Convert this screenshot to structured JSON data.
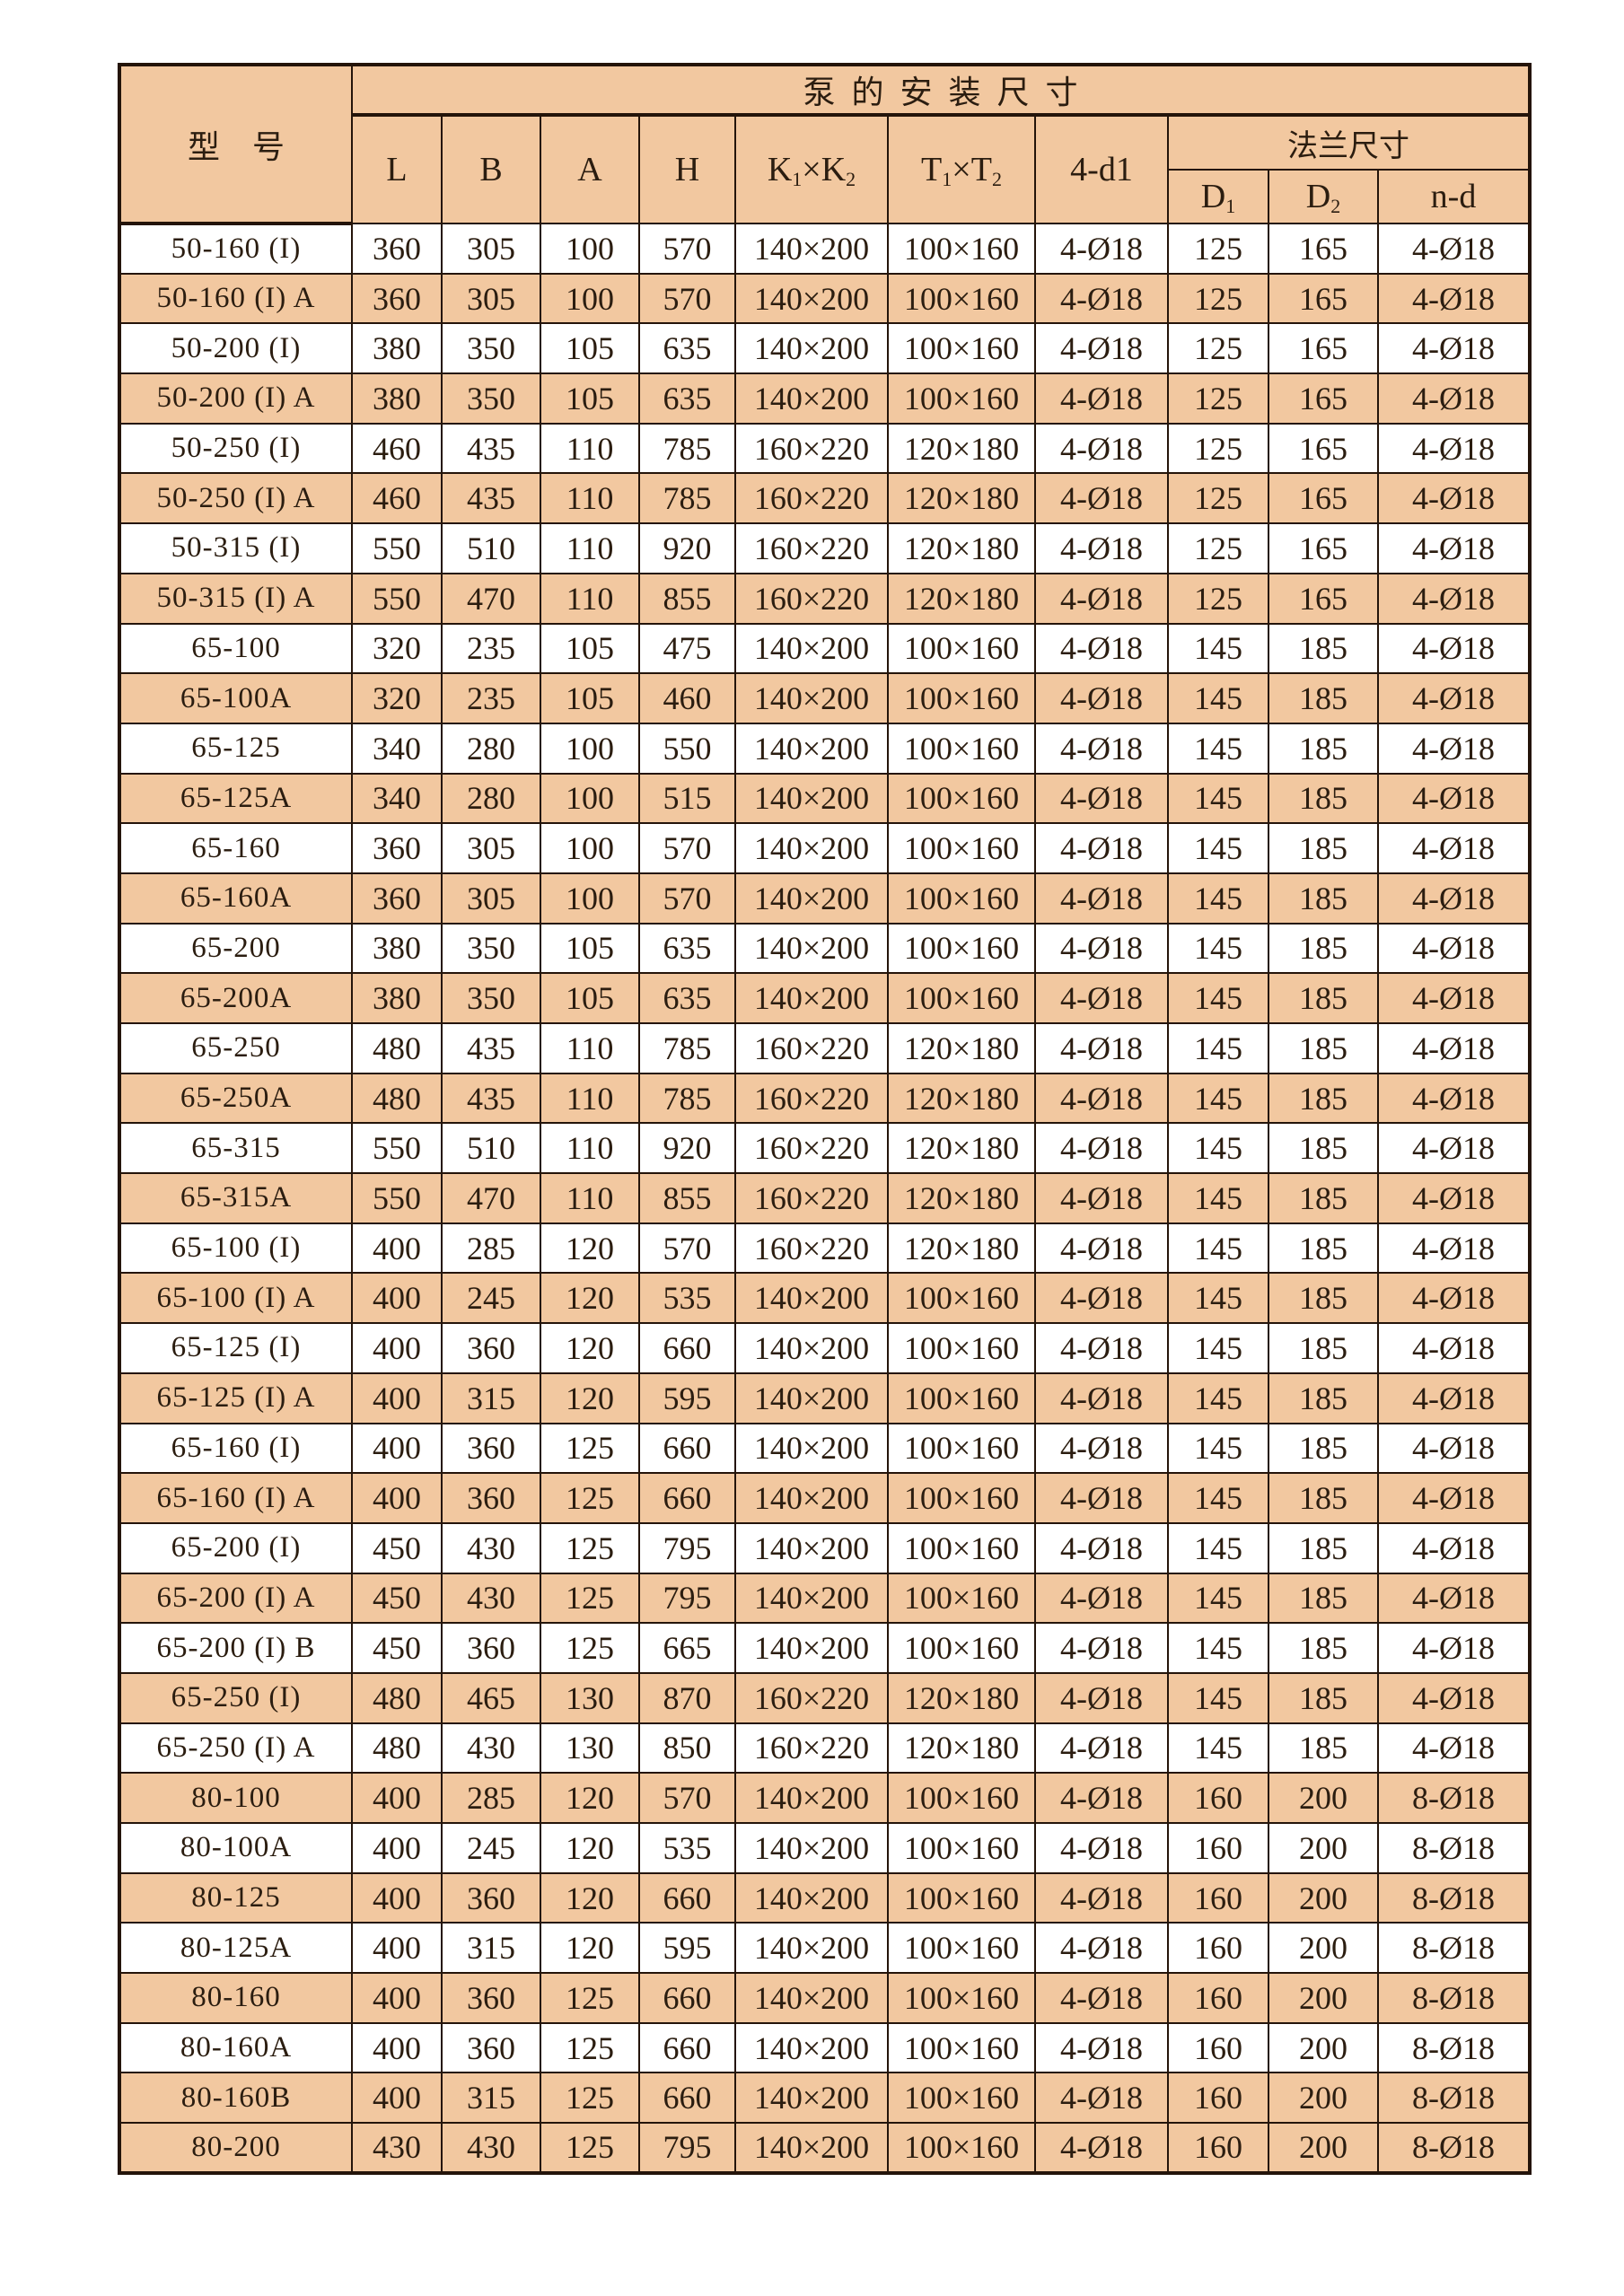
{
  "colors": {
    "stripe": "#f2c8a0",
    "row_background": "#ffffff",
    "border": "#24140a",
    "text": "#2b1d10"
  },
  "table": {
    "title": "泵的安装尺寸",
    "model_header": "型　号",
    "flange_header": "法兰尺寸",
    "columns": {
      "l": "L",
      "b": "B",
      "a": "A",
      "h": "H",
      "k": {
        "b1": "K",
        "s1": "1",
        "x": "×",
        "b2": "K",
        "s2": "2"
      },
      "t": {
        "b1": "T",
        "s1": "1",
        "x": "×",
        "b2": "T",
        "s2": "2"
      },
      "d1_bolt": "4-d1",
      "fd1": {
        "b": "D",
        "s": "1"
      },
      "fd2": {
        "b": "D",
        "s": "2"
      },
      "nd": "n-d"
    },
    "rows": [
      {
        "model": "50-160 (I)",
        "l": "360",
        "b": "305",
        "a": "100",
        "h": "570",
        "k": "140×200",
        "t": "100×160",
        "d1": "4-Ø18",
        "fd1": "125",
        "fd2": "165",
        "nd": "4-Ø18",
        "shaded": false
      },
      {
        "model": "50-160 (I) A",
        "l": "360",
        "b": "305",
        "a": "100",
        "h": "570",
        "k": "140×200",
        "t": "100×160",
        "d1": "4-Ø18",
        "fd1": "125",
        "fd2": "165",
        "nd": "4-Ø18",
        "shaded": true
      },
      {
        "model": "50-200 (I)",
        "l": "380",
        "b": "350",
        "a": "105",
        "h": "635",
        "k": "140×200",
        "t": "100×160",
        "d1": "4-Ø18",
        "fd1": "125",
        "fd2": "165",
        "nd": "4-Ø18",
        "shaded": false
      },
      {
        "model": "50-200 (I) A",
        "l": "380",
        "b": "350",
        "a": "105",
        "h": "635",
        "k": "140×200",
        "t": "100×160",
        "d1": "4-Ø18",
        "fd1": "125",
        "fd2": "165",
        "nd": "4-Ø18",
        "shaded": true
      },
      {
        "model": "50-250 (I)",
        "l": "460",
        "b": "435",
        "a": "110",
        "h": "785",
        "k": "160×220",
        "t": "120×180",
        "d1": "4-Ø18",
        "fd1": "125",
        "fd2": "165",
        "nd": "4-Ø18",
        "shaded": false
      },
      {
        "model": "50-250 (I) A",
        "l": "460",
        "b": "435",
        "a": "110",
        "h": "785",
        "k": "160×220",
        "t": "120×180",
        "d1": "4-Ø18",
        "fd1": "125",
        "fd2": "165",
        "nd": "4-Ø18",
        "shaded": true
      },
      {
        "model": "50-315 (I)",
        "l": "550",
        "b": "510",
        "a": "110",
        "h": "920",
        "k": "160×220",
        "t": "120×180",
        "d1": "4-Ø18",
        "fd1": "125",
        "fd2": "165",
        "nd": "4-Ø18",
        "shaded": false
      },
      {
        "model": "50-315 (I) A",
        "l": "550",
        "b": "470",
        "a": "110",
        "h": "855",
        "k": "160×220",
        "t": "120×180",
        "d1": "4-Ø18",
        "fd1": "125",
        "fd2": "165",
        "nd": "4-Ø18",
        "shaded": true
      },
      {
        "model": "65-100",
        "l": "320",
        "b": "235",
        "a": "105",
        "h": "475",
        "k": "140×200",
        "t": "100×160",
        "d1": "4-Ø18",
        "fd1": "145",
        "fd2": "185",
        "nd": "4-Ø18",
        "shaded": false
      },
      {
        "model": "65-100A",
        "l": "320",
        "b": "235",
        "a": "105",
        "h": "460",
        "k": "140×200",
        "t": "100×160",
        "d1": "4-Ø18",
        "fd1": "145",
        "fd2": "185",
        "nd": "4-Ø18",
        "shaded": true
      },
      {
        "model": "65-125",
        "l": "340",
        "b": "280",
        "a": "100",
        "h": "550",
        "k": "140×200",
        "t": "100×160",
        "d1": "4-Ø18",
        "fd1": "145",
        "fd2": "185",
        "nd": "4-Ø18",
        "shaded": false
      },
      {
        "model": "65-125A",
        "l": "340",
        "b": "280",
        "a": "100",
        "h": "515",
        "k": "140×200",
        "t": "100×160",
        "d1": "4-Ø18",
        "fd1": "145",
        "fd2": "185",
        "nd": "4-Ø18",
        "shaded": true
      },
      {
        "model": "65-160",
        "l": "360",
        "b": "305",
        "a": "100",
        "h": "570",
        "k": "140×200",
        "t": "100×160",
        "d1": "4-Ø18",
        "fd1": "145",
        "fd2": "185",
        "nd": "4-Ø18",
        "shaded": false
      },
      {
        "model": "65-160A",
        "l": "360",
        "b": "305",
        "a": "100",
        "h": "570",
        "k": "140×200",
        "t": "100×160",
        "d1": "4-Ø18",
        "fd1": "145",
        "fd2": "185",
        "nd": "4-Ø18",
        "shaded": true
      },
      {
        "model": "65-200",
        "l": "380",
        "b": "350",
        "a": "105",
        "h": "635",
        "k": "140×200",
        "t": "100×160",
        "d1": "4-Ø18",
        "fd1": "145",
        "fd2": "185",
        "nd": "4-Ø18",
        "shaded": false
      },
      {
        "model": "65-200A",
        "l": "380",
        "b": "350",
        "a": "105",
        "h": "635",
        "k": "140×200",
        "t": "100×160",
        "d1": "4-Ø18",
        "fd1": "145",
        "fd2": "185",
        "nd": "4-Ø18",
        "shaded": true
      },
      {
        "model": "65-250",
        "l": "480",
        "b": "435",
        "a": "110",
        "h": "785",
        "k": "160×220",
        "t": "120×180",
        "d1": "4-Ø18",
        "fd1": "145",
        "fd2": "185",
        "nd": "4-Ø18",
        "shaded": false
      },
      {
        "model": "65-250A",
        "l": "480",
        "b": "435",
        "a": "110",
        "h": "785",
        "k": "160×220",
        "t": "120×180",
        "d1": "4-Ø18",
        "fd1": "145",
        "fd2": "185",
        "nd": "4-Ø18",
        "shaded": true
      },
      {
        "model": "65-315",
        "l": "550",
        "b": "510",
        "a": "110",
        "h": "920",
        "k": "160×220",
        "t": "120×180",
        "d1": "4-Ø18",
        "fd1": "145",
        "fd2": "185",
        "nd": "4-Ø18",
        "shaded": false
      },
      {
        "model": "65-315A",
        "l": "550",
        "b": "470",
        "a": "110",
        "h": "855",
        "k": "160×220",
        "t": "120×180",
        "d1": "4-Ø18",
        "fd1": "145",
        "fd2": "185",
        "nd": "4-Ø18",
        "shaded": true
      },
      {
        "model": "65-100 (I)",
        "l": "400",
        "b": "285",
        "a": "120",
        "h": "570",
        "k": "160×220",
        "t": "120×180",
        "d1": "4-Ø18",
        "fd1": "145",
        "fd2": "185",
        "nd": "4-Ø18",
        "shaded": false
      },
      {
        "model": "65-100 (I) A",
        "l": "400",
        "b": "245",
        "a": "120",
        "h": "535",
        "k": "140×200",
        "t": "100×160",
        "d1": "4-Ø18",
        "fd1": "145",
        "fd2": "185",
        "nd": "4-Ø18",
        "shaded": true
      },
      {
        "model": "65-125 (I)",
        "l": "400",
        "b": "360",
        "a": "120",
        "h": "660",
        "k": "140×200",
        "t": "100×160",
        "d1": "4-Ø18",
        "fd1": "145",
        "fd2": "185",
        "nd": "4-Ø18",
        "shaded": false
      },
      {
        "model": "65-125 (I) A",
        "l": "400",
        "b": "315",
        "a": "120",
        "h": "595",
        "k": "140×200",
        "t": "100×160",
        "d1": "4-Ø18",
        "fd1": "145",
        "fd2": "185",
        "nd": "4-Ø18",
        "shaded": true
      },
      {
        "model": "65-160 (I)",
        "l": "400",
        "b": "360",
        "a": "125",
        "h": "660",
        "k": "140×200",
        "t": "100×160",
        "d1": "4-Ø18",
        "fd1": "145",
        "fd2": "185",
        "nd": "4-Ø18",
        "shaded": false
      },
      {
        "model": "65-160 (I) A",
        "l": "400",
        "b": "360",
        "a": "125",
        "h": "660",
        "k": "140×200",
        "t": "100×160",
        "d1": "4-Ø18",
        "fd1": "145",
        "fd2": "185",
        "nd": "4-Ø18",
        "shaded": true
      },
      {
        "model": "65-200 (I)",
        "l": "450",
        "b": "430",
        "a": "125",
        "h": "795",
        "k": "140×200",
        "t": "100×160",
        "d1": "4-Ø18",
        "fd1": "145",
        "fd2": "185",
        "nd": "4-Ø18",
        "shaded": false
      },
      {
        "model": "65-200 (I) A",
        "l": "450",
        "b": "430",
        "a": "125",
        "h": "795",
        "k": "140×200",
        "t": "100×160",
        "d1": "4-Ø18",
        "fd1": "145",
        "fd2": "185",
        "nd": "4-Ø18",
        "shaded": true
      },
      {
        "model": "65-200 (I) B",
        "l": "450",
        "b": "360",
        "a": "125",
        "h": "665",
        "k": "140×200",
        "t": "100×160",
        "d1": "4-Ø18",
        "fd1": "145",
        "fd2": "185",
        "nd": "4-Ø18",
        "shaded": false
      },
      {
        "model": "65-250 (I)",
        "l": "480",
        "b": "465",
        "a": "130",
        "h": "870",
        "k": "160×220",
        "t": "120×180",
        "d1": "4-Ø18",
        "fd1": "145",
        "fd2": "185",
        "nd": "4-Ø18",
        "shaded": true
      },
      {
        "model": "65-250 (I) A",
        "l": "480",
        "b": "430",
        "a": "130",
        "h": "850",
        "k": "160×220",
        "t": "120×180",
        "d1": "4-Ø18",
        "fd1": "145",
        "fd2": "185",
        "nd": "4-Ø18",
        "shaded": false
      },
      {
        "model": "80-100",
        "l": "400",
        "b": "285",
        "a": "120",
        "h": "570",
        "k": "140×200",
        "t": "100×160",
        "d1": "4-Ø18",
        "fd1": "160",
        "fd2": "200",
        "nd": "8-Ø18",
        "shaded": true
      },
      {
        "model": "80-100A",
        "l": "400",
        "b": "245",
        "a": "120",
        "h": "535",
        "k": "140×200",
        "t": "100×160",
        "d1": "4-Ø18",
        "fd1": "160",
        "fd2": "200",
        "nd": "8-Ø18",
        "shaded": false
      },
      {
        "model": "80-125",
        "l": "400",
        "b": "360",
        "a": "120",
        "h": "660",
        "k": "140×200",
        "t": "100×160",
        "d1": "4-Ø18",
        "fd1": "160",
        "fd2": "200",
        "nd": "8-Ø18",
        "shaded": true
      },
      {
        "model": "80-125A",
        "l": "400",
        "b": "315",
        "a": "120",
        "h": "595",
        "k": "140×200",
        "t": "100×160",
        "d1": "4-Ø18",
        "fd1": "160",
        "fd2": "200",
        "nd": "8-Ø18",
        "shaded": false
      },
      {
        "model": "80-160",
        "l": "400",
        "b": "360",
        "a": "125",
        "h": "660",
        "k": "140×200",
        "t": "100×160",
        "d1": "4-Ø18",
        "fd1": "160",
        "fd2": "200",
        "nd": "8-Ø18",
        "shaded": true
      },
      {
        "model": "80-160A",
        "l": "400",
        "b": "360",
        "a": "125",
        "h": "660",
        "k": "140×200",
        "t": "100×160",
        "d1": "4-Ø18",
        "fd1": "160",
        "fd2": "200",
        "nd": "8-Ø18",
        "shaded": false
      },
      {
        "model": "80-160B",
        "l": "400",
        "b": "315",
        "a": "125",
        "h": "660",
        "k": "140×200",
        "t": "100×160",
        "d1": "4-Ø18",
        "fd1": "160",
        "fd2": "200",
        "nd": "8-Ø18",
        "shaded": true
      },
      {
        "model": "80-200",
        "l": "430",
        "b": "430",
        "a": "125",
        "h": "795",
        "k": "140×200",
        "t": "100×160",
        "d1": "4-Ø18",
        "fd1": "160",
        "fd2": "200",
        "nd": "8-Ø18",
        "shaded": true
      }
    ]
  }
}
